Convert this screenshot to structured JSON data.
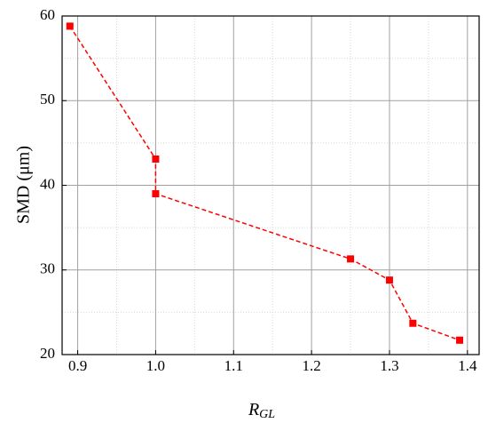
{
  "chart_data": {
    "type": "line",
    "x_label": "R",
    "x_label_subscript": "GL",
    "y_label": "SMD (μm)",
    "series": [
      {
        "color": "#ff0000",
        "x": [
          0.89,
          1.0,
          1.0,
          1.25,
          1.3,
          1.33,
          1.39
        ],
        "values": [
          58.8,
          43.1,
          39.0,
          31.3,
          28.8,
          23.7,
          21.7
        ]
      }
    ],
    "xlim": [
      0.88,
      1.415
    ],
    "ylim": [
      20,
      60
    ],
    "xticks": [
      0.9,
      {
        "value": 1,
        "label": "1.0"
      },
      1.1,
      1.2,
      1.3,
      1.4
    ],
    "yticks": [
      20,
      30,
      40,
      50,
      60
    ],
    "grid": true,
    "minor_grid": true
  }
}
